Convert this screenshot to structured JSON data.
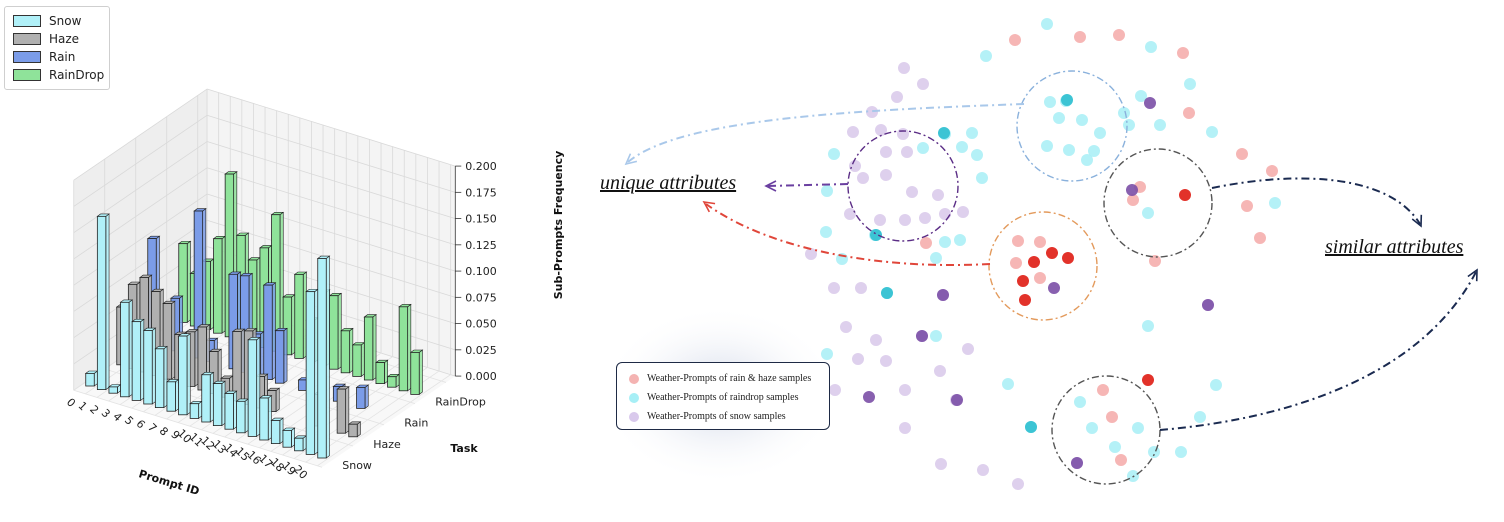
{
  "chart_data": [
    {
      "type": "bar3d",
      "title": "",
      "xlabel": "Prompt ID",
      "ylabel": "Task",
      "zlabel": "Sub-Prompts Frequency",
      "zlim": [
        0,
        0.2
      ],
      "zticks": [
        "0.000",
        "0.025",
        "0.050",
        "0.075",
        "0.100",
        "0.125",
        "0.150",
        "0.175",
        "0.200"
      ],
      "categories": [
        "0",
        "1",
        "2",
        "3",
        "4",
        "5",
        "6",
        "7",
        "8",
        "9",
        "10",
        "11",
        "12",
        "13",
        "14",
        "15",
        "16",
        "17",
        "18",
        "19",
        "20"
      ],
      "tasks": [
        "Snow",
        "Haze",
        "Rain",
        "RainDrop"
      ],
      "grid": true,
      "legend_position": "top-left",
      "series": [
        {
          "name": "Snow",
          "color": "#b0f0f8",
          "values": [
            0.012,
            0.165,
            0.006,
            0.09,
            0.075,
            0.07,
            0.056,
            0.028,
            0.075,
            0.014,
            0.045,
            0.04,
            0.034,
            0.03,
            0.092,
            0.04,
            0.022,
            0.016,
            0.012,
            0.155,
            0.19
          ]
        },
        {
          "name": "Haze",
          "color": "#b0b0b0",
          "values": [
            0.055,
            0.08,
            0.09,
            0.08,
            0.072,
            0.046,
            0.052,
            0.06,
            0.04,
            0.018,
            0.066,
            0.07,
            0.03,
            0.02,
            0.0,
            0.0,
            0.0,
            0.03,
            0.0,
            0.042,
            0.012
          ]
        },
        {
          "name": "Rain",
          "color": "#7b9ce8",
          "values": [
            0.1,
            0.0,
            0.05,
            0.014,
            0.14,
            0.02,
            0.0,
            0.09,
            0.092,
            0.04,
            0.09,
            0.05,
            0.0,
            0.01,
            0.0,
            0.0,
            0.014,
            0.0,
            0.02,
            0.0,
            0.0
          ]
        },
        {
          "name": "RainDrop",
          "color": "#8fe39a",
          "values": [
            0.075,
            0.05,
            0.065,
            0.09,
            0.155,
            0.1,
            0.08,
            0.095,
            0.13,
            0.055,
            0.08,
            0.04,
            0.07,
            0.07,
            0.04,
            0.03,
            0.06,
            0.02,
            0.01,
            0.08,
            0.04
          ]
        }
      ]
    },
    {
      "type": "scatter",
      "title": "",
      "legend_position": "bottom-left",
      "series": [
        {
          "name": "Weather-Prompts of rain & haze samples",
          "color": "#f4a9a8",
          "points": [
            [
              1015,
              40
            ],
            [
              1080,
              37
            ],
            [
              1119,
              35
            ],
            [
              1183,
              53
            ],
            [
              1189,
              113
            ],
            [
              1242,
              154
            ],
            [
              1272,
              171
            ],
            [
              1247,
              206
            ],
            [
              1260,
              238
            ],
            [
              1133,
              200
            ],
            [
              1155,
              261
            ],
            [
              1140,
              187
            ],
            [
              1018,
              241
            ],
            [
              1040,
              242
            ],
            [
              1016,
              263
            ],
            [
              1040,
              278
            ],
            [
              1103,
              390
            ],
            [
              1112,
              417
            ],
            [
              1121,
              460
            ],
            [
              926,
              243
            ]
          ]
        },
        {
          "name": "Weather-Prompts of raindrop samples",
          "color": "#a7eff6",
          "points": [
            [
              1047,
              24
            ],
            [
              1151,
              47
            ],
            [
              986,
              56
            ],
            [
              1190,
              84
            ],
            [
              1141,
              96
            ],
            [
              1160,
              125
            ],
            [
              1212,
              132
            ],
            [
              1050,
              102
            ],
            [
              1066,
              101
            ],
            [
              1059,
              118
            ],
            [
              1082,
              120
            ],
            [
              1100,
              133
            ],
            [
              1047,
              146
            ],
            [
              1069,
              150
            ],
            [
              1087,
              160
            ],
            [
              1124,
              113
            ],
            [
              1129,
              125
            ],
            [
              1094,
              151
            ],
            [
              834,
              154
            ],
            [
              923,
              148
            ],
            [
              945,
              134
            ],
            [
              962,
              147
            ],
            [
              977,
              155
            ],
            [
              972,
              133
            ],
            [
              982,
              178
            ],
            [
              827,
              191
            ],
            [
              826,
              232
            ],
            [
              842,
              259
            ],
            [
              875,
              235
            ],
            [
              945,
              242
            ],
            [
              960,
              240
            ],
            [
              936,
              258
            ],
            [
              1148,
              213
            ],
            [
              1275,
              203
            ],
            [
              827,
              354
            ],
            [
              936,
              336
            ],
            [
              1148,
              326
            ],
            [
              1216,
              385
            ],
            [
              1200,
              417
            ],
            [
              1080,
              402
            ],
            [
              1092,
              428
            ],
            [
              1115,
              447
            ],
            [
              1138,
              428
            ],
            [
              1154,
              452
            ],
            [
              1181,
              452
            ],
            [
              1031,
              427
            ],
            [
              1008,
              384
            ],
            [
              1133,
              476
            ],
            [
              887,
              293
            ]
          ]
        },
        {
          "name": "Weather-Prompts of snow samples",
          "color": "#d8c8ea",
          "points": [
            [
              904,
              68
            ],
            [
              923,
              84
            ],
            [
              897,
              97
            ],
            [
              872,
              112
            ],
            [
              881,
              130
            ],
            [
              853,
              132
            ],
            [
              903,
              134
            ],
            [
              855,
              166
            ],
            [
              907,
              152
            ],
            [
              886,
              152
            ],
            [
              886,
              175
            ],
            [
              863,
              178
            ],
            [
              912,
              192
            ],
            [
              938,
              195
            ],
            [
              945,
              214
            ],
            [
              925,
              218
            ],
            [
              905,
              220
            ],
            [
              880,
              220
            ],
            [
              850,
              214
            ],
            [
              963,
              212
            ],
            [
              834,
              288
            ],
            [
              811,
              254
            ],
            [
              861,
              288
            ],
            [
              846,
              327
            ],
            [
              876,
              340
            ],
            [
              858,
              359
            ],
            [
              886,
              361
            ],
            [
              835,
              390
            ],
            [
              905,
              390
            ],
            [
              940,
              371
            ],
            [
              968,
              349
            ],
            [
              1208,
              305
            ],
            [
              905,
              428
            ],
            [
              941,
              464
            ],
            [
              983,
              470
            ],
            [
              1018,
              484
            ],
            [
              1077,
              463
            ],
            [
              943,
              295
            ],
            [
              922,
              336
            ],
            [
              956,
              400
            ]
          ]
        }
      ]
    }
  ],
  "annotations": {
    "unique": "unique attributes",
    "similar": "similar attributes"
  },
  "scatter_legend": [
    {
      "label": "Weather-Prompts of rain & haze samples",
      "color": "#f4b3b2"
    },
    {
      "label": "Weather-Prompts of raindrop samples",
      "color": "#a7eff6"
    },
    {
      "label": "Weather-Prompts of snow samples",
      "color": "#d9c9ec"
    }
  ]
}
